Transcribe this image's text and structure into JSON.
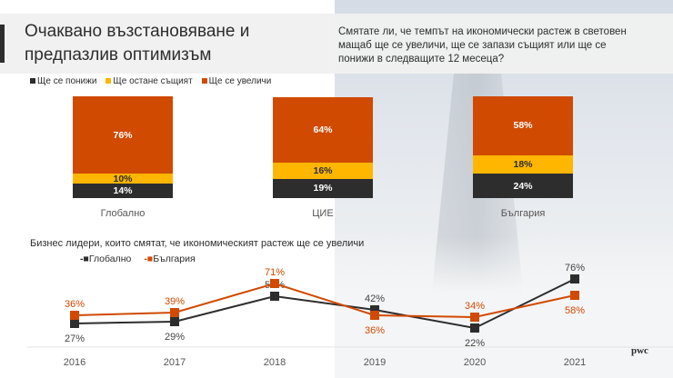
{
  "title": "Очаквано възстановяване и предпазлив оптимизъм",
  "question": "Смятате ли, че темпът на икономически растеж в световен мащаб ще се увеличи, ще се запази същият или ще се понижи в следващите 12 месеца?",
  "logo": "pwc",
  "colors": {
    "dark": "#2d2d2d",
    "yellow": "#ffb600",
    "orange": "#d04a02"
  },
  "chart_data": [
    {
      "type": "bar",
      "stacked": true,
      "categories": [
        "Глобално",
        "ЦИЕ",
        "България"
      ],
      "series": [
        {
          "name": "Ще се понижи",
          "values": [
            14,
            19,
            24
          ]
        },
        {
          "name": "Ще остане същият",
          "values": [
            10,
            16,
            18
          ]
        },
        {
          "name": "Ще се увеличи",
          "values": [
            76,
            64,
            58
          ]
        }
      ],
      "legend": "top-left"
    },
    {
      "type": "line",
      "title": "Бизнес лидери,  които смятат, че икономическият  растеж ще се увеличи",
      "x": [
        "2016",
        "2017",
        "2018",
        "2019",
        "2020",
        "2021"
      ],
      "series": [
        {
          "name": "Глобално",
          "values": [
            27,
            29,
            57,
            42,
            22,
            76
          ]
        },
        {
          "name": "България",
          "values": [
            36,
            39,
            71,
            36,
            34,
            58
          ]
        }
      ],
      "legend": "top-left"
    }
  ]
}
